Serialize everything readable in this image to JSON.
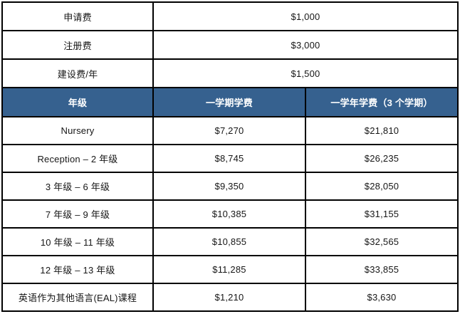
{
  "table": {
    "top_rows": [
      {
        "label": "申请费",
        "value": "$1,000"
      },
      {
        "label": "注册费",
        "value": "$3,000"
      },
      {
        "label": "建设费/年",
        "value": "$1,500"
      }
    ],
    "header": {
      "grade": "年级",
      "term": "一学期学费",
      "year": "一学年学费（3 个学期）"
    },
    "rows": [
      {
        "grade": "Nursery",
        "term": "$7,270",
        "year": "$21,810"
      },
      {
        "grade": "Reception – 2 年级",
        "term": "$8,745",
        "year": "$26,235"
      },
      {
        "grade": "3 年级 – 6 年级",
        "term": "$9,350",
        "year": "$28,050"
      },
      {
        "grade": "7 年级 – 9 年级",
        "term": "$10,385",
        "year": "$31,155"
      },
      {
        "grade": "10 年级 – 11 年级",
        "term": "$10,855",
        "year": "$32,565"
      },
      {
        "grade": "12 年级 – 13 年级",
        "term": "$11,285",
        "year": "$33,855"
      },
      {
        "grade": "英语作为其他语言(EAL)课程",
        "term": "$1,210",
        "year": "$3,630"
      }
    ],
    "colors": {
      "header_bg": "#36618f",
      "header_text": "#ffffff",
      "border": "#000000",
      "body_text": "#161616"
    }
  }
}
